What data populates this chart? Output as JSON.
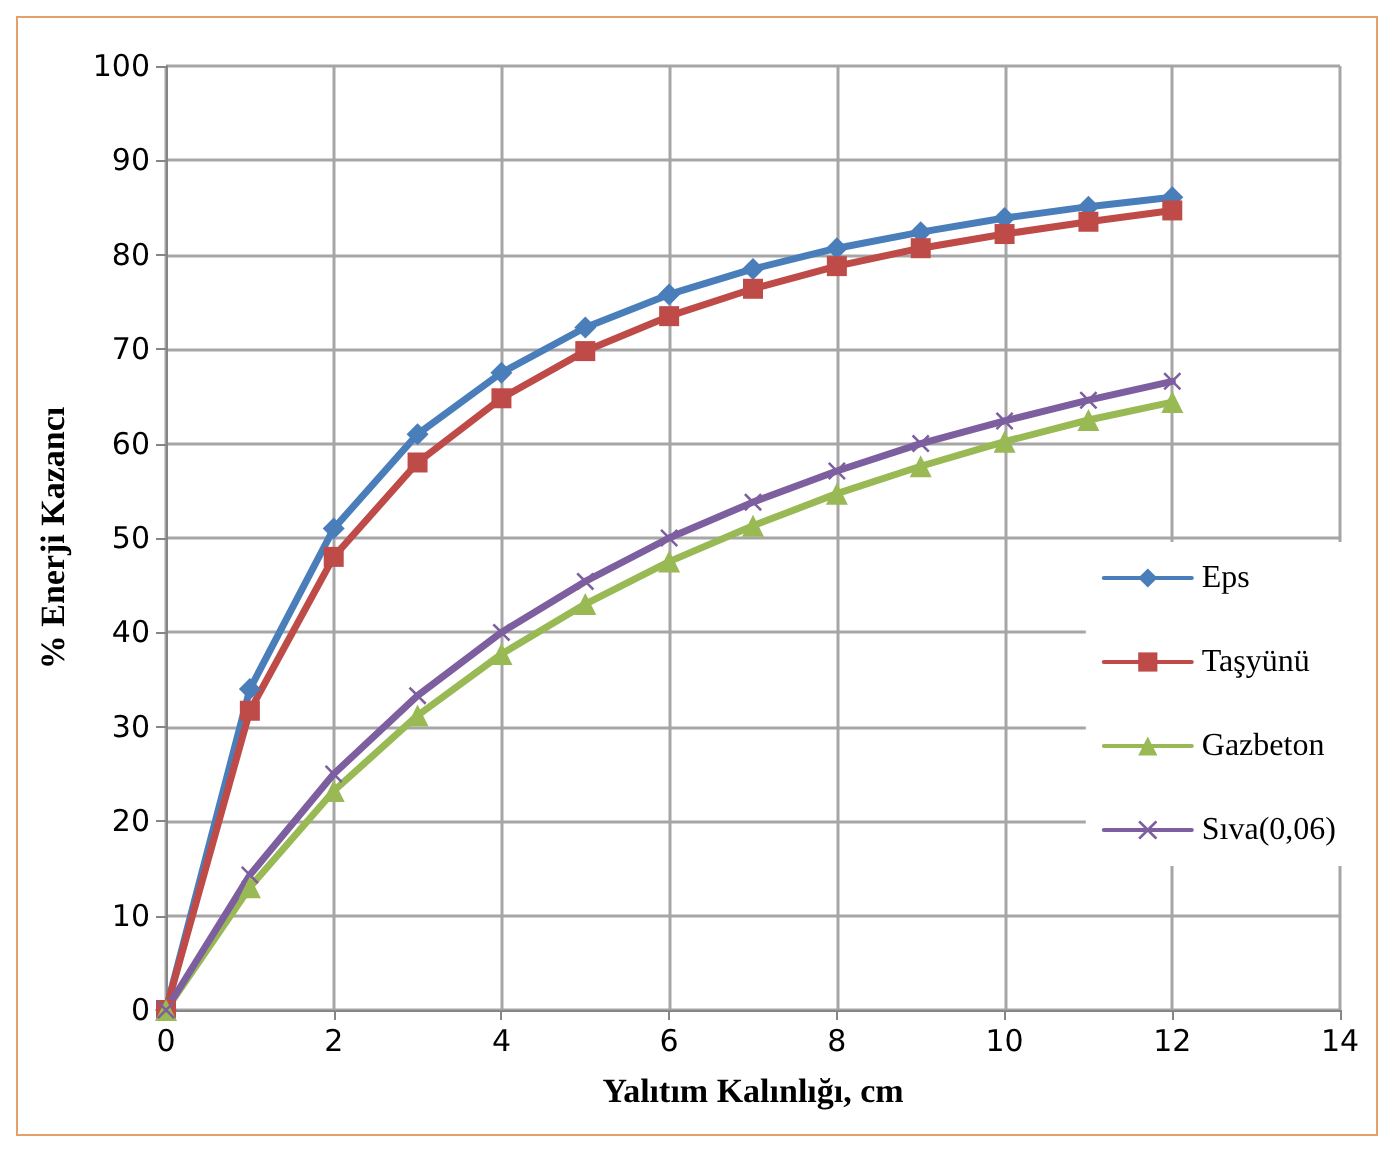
{
  "chart_data": {
    "type": "line",
    "xlabel": "Yalıtım Kalınlığı, cm",
    "ylabel": "% Enerji Kazancı",
    "x": [
      0,
      1,
      2,
      3,
      4,
      5,
      6,
      7,
      8,
      9,
      10,
      11,
      12
    ],
    "series": [
      {
        "name": "Eps",
        "color": "#4a7ebb",
        "marker": "diamond",
        "values": [
          0,
          34,
          51,
          61,
          67.5,
          72.3,
          75.8,
          78.5,
          80.7,
          82.4,
          83.9,
          85.1,
          86.1
        ]
      },
      {
        "name": "Taşyünü",
        "color": "#be4b48",
        "marker": "square",
        "values": [
          0,
          31.7,
          48,
          58,
          64.8,
          69.8,
          73.5,
          76.4,
          78.8,
          80.7,
          82.2,
          83.5,
          84.7
        ]
      },
      {
        "name": "Gazbeton",
        "color": "#98b954",
        "marker": "triangle",
        "values": [
          0,
          13,
          23.2,
          31.2,
          37.7,
          43,
          47.5,
          51.3,
          54.7,
          57.6,
          60.2,
          62.5,
          64.4
        ]
      },
      {
        "name": "Sıva(0,06)",
        "color": "#7d5fa0",
        "marker": "cross",
        "values": [
          0,
          14.3,
          25,
          33.3,
          40,
          45.4,
          50,
          53.8,
          57.1,
          60,
          62.4,
          64.6,
          66.6
        ]
      }
    ],
    "xlim": [
      0,
      14
    ],
    "xticks": [
      0,
      2,
      4,
      6,
      8,
      10,
      12,
      14
    ],
    "ylim": [
      0,
      100
    ],
    "yticks": [
      0,
      10,
      20,
      30,
      40,
      50,
      60,
      70,
      80,
      90,
      100
    ],
    "grid": true,
    "legend": "right"
  }
}
